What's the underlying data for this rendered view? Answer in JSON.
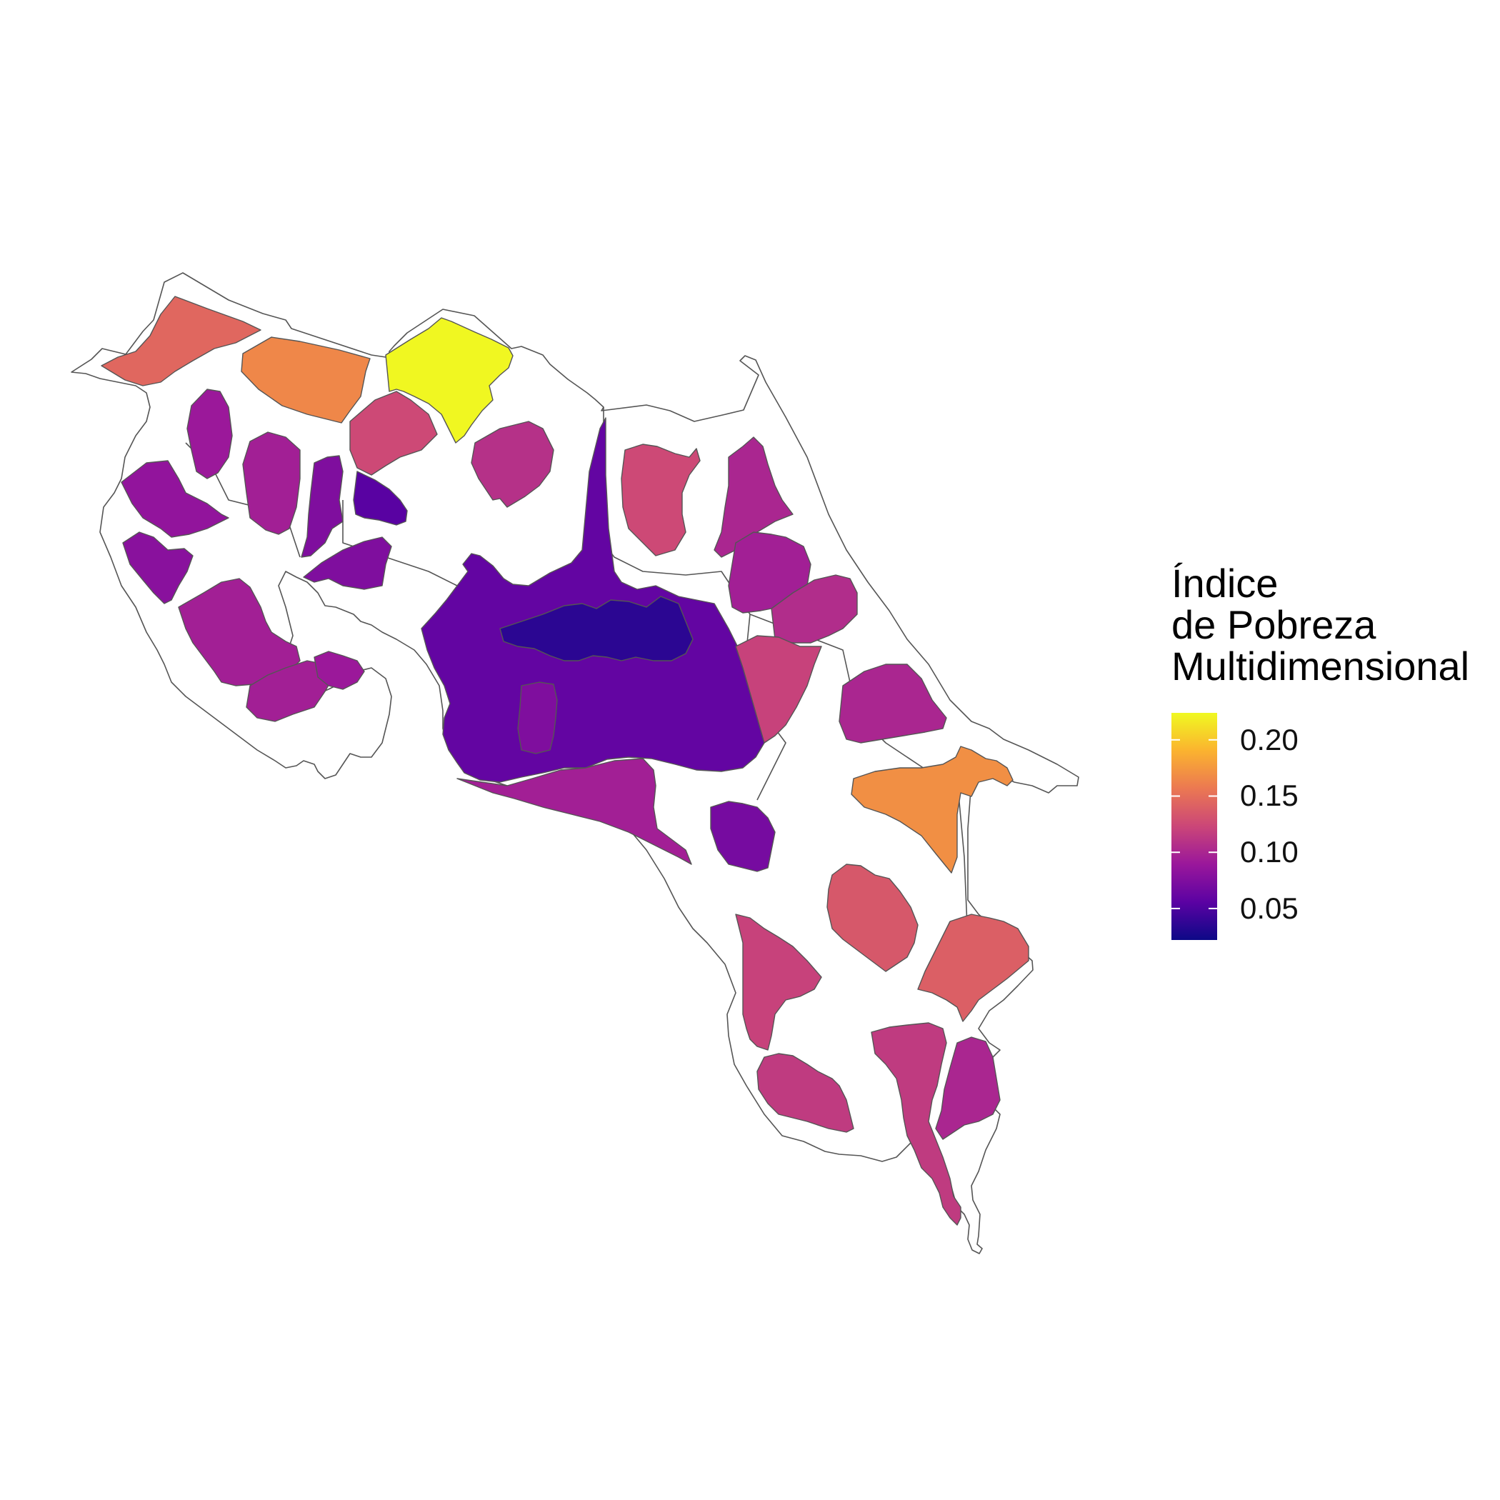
{
  "legend": {
    "title_lines": [
      "Índice",
      "de Pobreza",
      "Multidimensional"
    ],
    "scale": "plasma",
    "ticks": [
      {
        "value": 0.2,
        "label": "0.20"
      },
      {
        "value": 0.15,
        "label": "0.15"
      },
      {
        "value": 0.1,
        "label": "0.10"
      },
      {
        "value": 0.05,
        "label": "0.05"
      }
    ],
    "range": [
      0.022,
      0.224
    ],
    "colors": [
      "#0d0887",
      "#5b02a3",
      "#9a179b",
      "#cb4678",
      "#eb7852",
      "#fbb32f",
      "#f0f921"
    ]
  },
  "map": {
    "outline_color": "#555555",
    "regions": [
      {
        "id": "nw-peninsula-top",
        "value": 0.145
      },
      {
        "id": "north-2",
        "value": 0.165
      },
      {
        "id": "upala-north",
        "value": 0.223
      },
      {
        "id": "north-south-1",
        "value": 0.125
      },
      {
        "id": "san-carlos-east",
        "value": 0.108
      },
      {
        "id": "sarapiqui-north",
        "value": 0.125
      },
      {
        "id": "limon-north",
        "value": 0.1
      },
      {
        "id": "guanacaste-1",
        "value": 0.09
      },
      {
        "id": "guanacaste-2",
        "value": 0.095
      },
      {
        "id": "liberia-w",
        "value": 0.085
      },
      {
        "id": "tilaran",
        "value": 0.075
      },
      {
        "id": "canas",
        "value": 0.055
      },
      {
        "id": "abangares",
        "value": 0.075
      },
      {
        "id": "nicoya-west",
        "value": 0.08
      },
      {
        "id": "nicoya-center",
        "value": 0.095
      },
      {
        "id": "nicoya-south",
        "value": 0.095
      },
      {
        "id": "puntarenas-gulf",
        "value": 0.09
      },
      {
        "id": "central-valley",
        "value": 0.06
      },
      {
        "id": "central-core",
        "value": 0.035
      },
      {
        "id": "central-south",
        "value": 0.075
      },
      {
        "id": "pacific-central",
        "value": 0.095
      },
      {
        "id": "limon-central-1",
        "value": 0.095
      },
      {
        "id": "limon-central-2",
        "value": 0.105
      },
      {
        "id": "limon-central-3",
        "value": 0.12
      },
      {
        "id": "limon-central-4",
        "value": 0.1
      },
      {
        "id": "talamanca-north",
        "value": 0.17
      },
      {
        "id": "perez-zeledon",
        "value": 0.07
      },
      {
        "id": "buenos-aires",
        "value": 0.135
      },
      {
        "id": "talamanca-south",
        "value": 0.14
      },
      {
        "id": "osa",
        "value": 0.12
      },
      {
        "id": "golfito",
        "value": 0.115
      },
      {
        "id": "corredores",
        "value": 0.115
      },
      {
        "id": "coto-brus",
        "value": 0.1
      }
    ]
  }
}
